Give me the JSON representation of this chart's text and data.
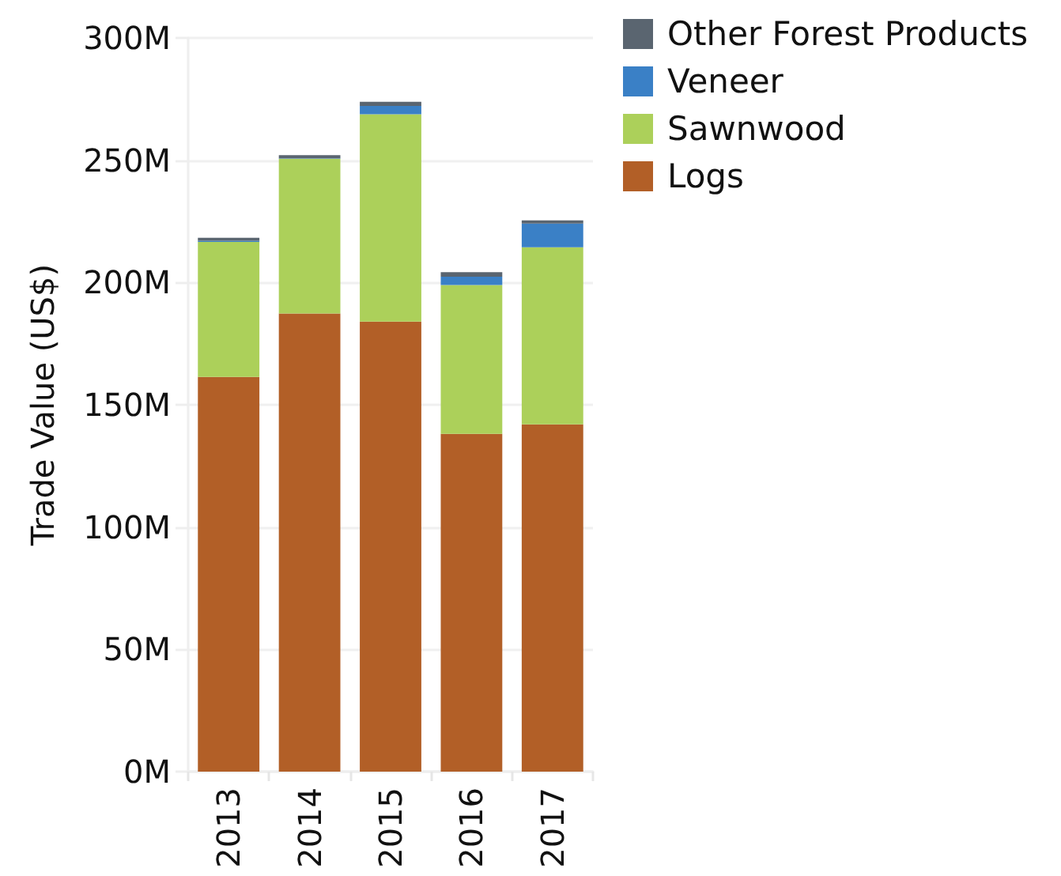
{
  "chart_data": {
    "type": "bar",
    "ylabel": "Trade Value (US$)",
    "categories": [
      "2013",
      "2014",
      "2015",
      "2016",
      "2017"
    ],
    "stacked": true,
    "series": [
      {
        "name": "Logs",
        "color": "#b25f27",
        "values": [
          161400000,
          187300000,
          184000000,
          138100000,
          142000000
        ]
      },
      {
        "name": "Sawnwood",
        "color": "#acd05a",
        "values": [
          55200000,
          63300000,
          84800000,
          60900000,
          72400000
        ]
      },
      {
        "name": "Veneer",
        "color": "#3a80c6",
        "values": [
          500000,
          200000,
          3400000,
          3400000,
          9700000
        ]
      },
      {
        "name": "Other Forest Products",
        "color": "#5a6570",
        "values": [
          1200000,
          1300000,
          1700000,
          1800000,
          1300000
        ]
      }
    ],
    "ylim": [
      0,
      300000000
    ],
    "yticks": [
      {
        "value": 0,
        "label": "0M"
      },
      {
        "value": 50000000,
        "label": "50M"
      },
      {
        "value": 100000000,
        "label": "100M"
      },
      {
        "value": 150000000,
        "label": "150M"
      },
      {
        "value": 200000000,
        "label": "200M"
      },
      {
        "value": 250000000,
        "label": "250M"
      },
      {
        "value": 300000000,
        "label": "300M"
      }
    ],
    "grid": "y",
    "legend": "top right"
  }
}
